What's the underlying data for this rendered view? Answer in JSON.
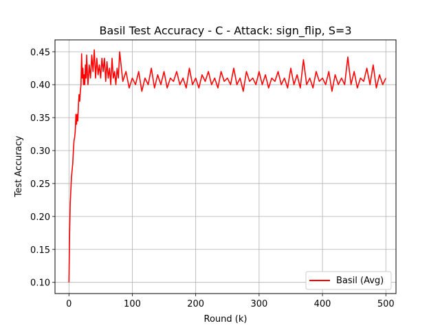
{
  "chart_data": {
    "type": "line",
    "title": "Basil Test Accuracy - C - Attack: sign_flip, S=3",
    "xlabel": "Round (k)",
    "ylabel": "Test Accuracy",
    "xlim": [
      -22,
      516
    ],
    "ylim": [
      0.083,
      0.468
    ],
    "xticks": [
      0,
      100,
      200,
      300,
      400,
      500
    ],
    "yticks": [
      0.1,
      0.15,
      0.2,
      0.25,
      0.3,
      0.35,
      0.4,
      0.45
    ],
    "xtick_labels": [
      "0",
      "100",
      "200",
      "300",
      "400",
      "500"
    ],
    "ytick_labels": [
      "0.10",
      "0.15",
      "0.20",
      "0.25",
      "0.30",
      "0.35",
      "0.40",
      "0.45"
    ],
    "grid": true,
    "legend_position": "lower-right",
    "series": [
      {
        "name": "Basil (Avg)",
        "color": "#ff0000",
        "x": [
          0,
          1,
          2,
          3,
          4,
          5,
          6,
          7,
          8,
          9,
          10,
          11,
          12,
          13,
          14,
          15,
          16,
          17,
          18,
          19,
          20,
          21,
          22,
          23,
          24,
          25,
          26,
          27,
          28,
          29,
          30,
          32,
          34,
          36,
          38,
          40,
          42,
          44,
          46,
          48,
          50,
          52,
          54,
          56,
          58,
          60,
          62,
          64,
          66,
          68,
          70,
          72,
          74,
          76,
          78,
          80,
          85,
          90,
          95,
          100,
          105,
          110,
          115,
          120,
          125,
          130,
          135,
          140,
          145,
          150,
          155,
          160,
          165,
          170,
          175,
          180,
          185,
          190,
          195,
          200,
          205,
          210,
          215,
          220,
          225,
          230,
          235,
          240,
          245,
          250,
          255,
          260,
          265,
          270,
          275,
          280,
          285,
          290,
          295,
          300,
          305,
          310,
          315,
          320,
          325,
          330,
          335,
          340,
          345,
          350,
          355,
          360,
          365,
          370,
          375,
          380,
          385,
          390,
          395,
          400,
          405,
          410,
          415,
          420,
          425,
          430,
          435,
          440,
          445,
          450,
          455,
          460,
          465,
          470,
          475,
          480,
          485,
          490,
          495,
          500
        ],
        "y": [
          0.1,
          0.17,
          0.22,
          0.24,
          0.26,
          0.27,
          0.28,
          0.3,
          0.315,
          0.32,
          0.33,
          0.355,
          0.34,
          0.355,
          0.345,
          0.37,
          0.385,
          0.375,
          0.39,
          0.4,
          0.447,
          0.41,
          0.425,
          0.4,
          0.415,
          0.4,
          0.43,
          0.41,
          0.445,
          0.42,
          0.4,
          0.43,
          0.41,
          0.445,
          0.42,
          0.453,
          0.41,
          0.44,
          0.415,
          0.43,
          0.41,
          0.44,
          0.42,
          0.44,
          0.405,
          0.435,
          0.41,
          0.425,
          0.4,
          0.44,
          0.41,
          0.42,
          0.4,
          0.425,
          0.41,
          0.45,
          0.405,
          0.42,
          0.395,
          0.41,
          0.4,
          0.42,
          0.39,
          0.41,
          0.4,
          0.425,
          0.395,
          0.415,
          0.4,
          0.42,
          0.395,
          0.41,
          0.405,
          0.42,
          0.4,
          0.41,
          0.395,
          0.425,
          0.4,
          0.41,
          0.395,
          0.415,
          0.405,
          0.42,
          0.4,
          0.41,
          0.395,
          0.42,
          0.405,
          0.41,
          0.4,
          0.425,
          0.4,
          0.41,
          0.39,
          0.42,
          0.405,
          0.41,
          0.4,
          0.42,
          0.4,
          0.415,
          0.395,
          0.41,
          0.405,
          0.42,
          0.4,
          0.41,
          0.395,
          0.425,
          0.4,
          0.415,
          0.395,
          0.438,
          0.4,
          0.41,
          0.395,
          0.42,
          0.405,
          0.41,
          0.4,
          0.42,
          0.39,
          0.415,
          0.4,
          0.41,
          0.4,
          0.442,
          0.4,
          0.42,
          0.395,
          0.41,
          0.405,
          0.425,
          0.4,
          0.43,
          0.395,
          0.415,
          0.4,
          0.41
        ]
      }
    ]
  }
}
